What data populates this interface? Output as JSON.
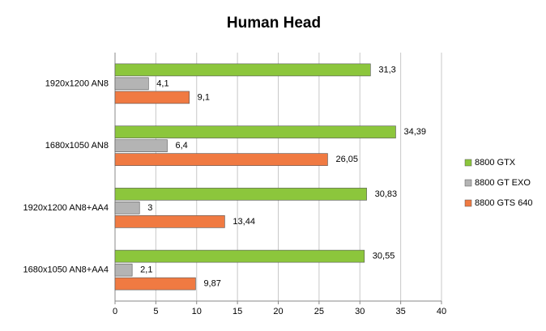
{
  "chart_data": {
    "type": "bar",
    "orientation": "horizontal",
    "title": "Human Head",
    "categories": [
      "1920x1200 AN8",
      "1680x1050 AN8",
      "1920x1200 AN8+AA4",
      "1680x1050 AN8+AA4"
    ],
    "series": [
      {
        "name": "8800 GTX",
        "color": "#8cc63c",
        "values": [
          31.3,
          34.39,
          30.83,
          30.55
        ],
        "value_labels": [
          "31,3",
          "34,39",
          "30,83",
          "30,55"
        ]
      },
      {
        "name": "8800 GT EXO",
        "color": "#b4b4b4",
        "values": [
          4.1,
          6.4,
          3,
          2.1
        ],
        "value_labels": [
          "4,1",
          "6,4",
          "3",
          "2,1"
        ]
      },
      {
        "name": "8800 GTS 640",
        "color": "#f07a42",
        "values": [
          9.1,
          26.05,
          13.44,
          9.87
        ],
        "value_labels": [
          "9,1",
          "26,05",
          "13,44",
          "9,87"
        ]
      }
    ],
    "xlim": [
      0,
      40
    ],
    "xticks": [
      0,
      5,
      10,
      15,
      20,
      25,
      30,
      35,
      40
    ],
    "grid": true,
    "legend": "right"
  }
}
